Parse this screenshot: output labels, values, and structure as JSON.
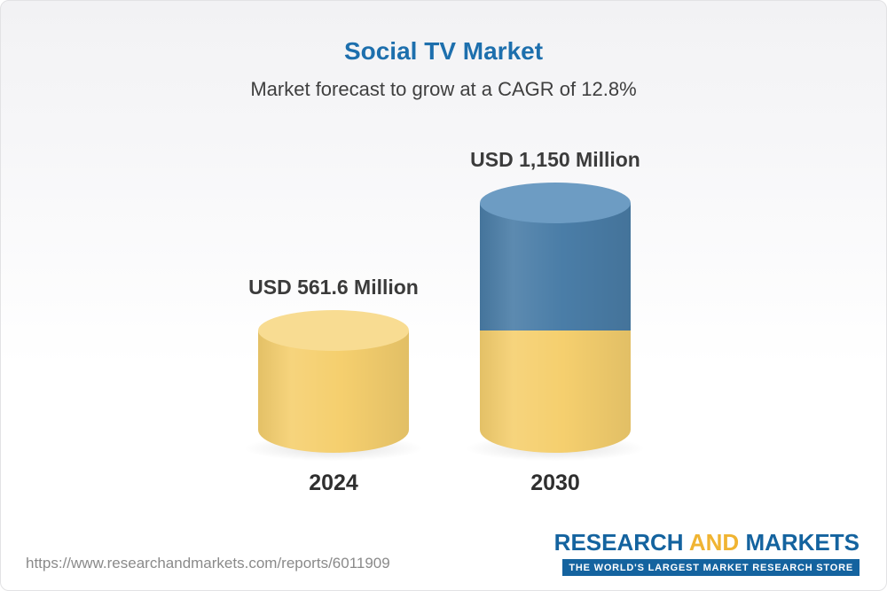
{
  "header": {
    "title": "Social TV Market",
    "subtitle": "Market forecast to grow at a CAGR of 12.8%"
  },
  "chart_data": {
    "type": "bar",
    "title": "Social TV Market",
    "subtitle": "Market forecast to grow at a CAGR of 12.8%",
    "cagr_percent": 12.8,
    "unit": "USD Million",
    "categories": [
      "2024",
      "2030"
    ],
    "values": [
      561.6,
      1150
    ],
    "ylim": [
      0,
      1150
    ],
    "grid": false,
    "legend": "none",
    "bars": [
      {
        "category": "2024",
        "value": 561.6,
        "label": "USD 561.6 Million",
        "cap_color": "#f8dc92",
        "segments": [
          {
            "name": "value-2024",
            "value": 561.6,
            "color": "#f5cf6e"
          }
        ]
      },
      {
        "category": "2030",
        "value": 1150,
        "label": "USD 1,150 Million",
        "cap_color": "#6d9cc3",
        "segments": [
          {
            "name": "growth-2024-to-2030",
            "value": 588.4,
            "color": "#4a7da7"
          },
          {
            "name": "base-2024-value",
            "value": 561.6,
            "color": "#f5cf6e"
          }
        ]
      }
    ]
  },
  "footer": {
    "url": "https://www.researchandmarkets.com/reports/6011909",
    "logo": {
      "research": "RESEARCH",
      "and": "AND",
      "markets": "MARKETS",
      "tagline": "THE WORLD'S LARGEST MARKET RESEARCH STORE"
    }
  }
}
